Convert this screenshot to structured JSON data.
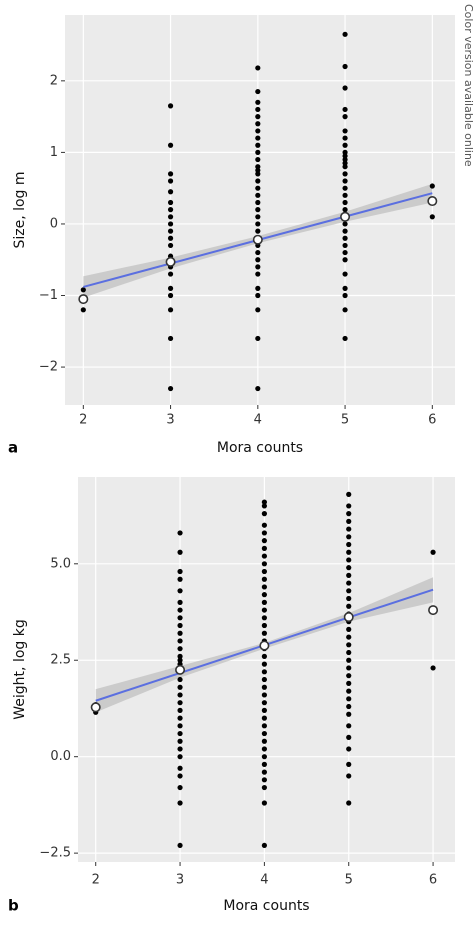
{
  "side_note": "Color version available online",
  "chart_data": [
    {
      "type": "scatter",
      "panel": "a",
      "xlabel": "Mora counts",
      "ylabel": "Size, log m",
      "xlim": [
        1.79,
        6.26
      ],
      "ylim": [
        -2.53,
        2.92
      ],
      "grid": true,
      "xticks": [
        2,
        3,
        4,
        5,
        6
      ],
      "yticks": [
        {
          "value": -2,
          "label": "−2"
        },
        {
          "value": -1,
          "label": "−1"
        },
        0,
        1,
        2
      ],
      "point_color": "#000000",
      "fit_color": "#5b6fe0",
      "band_color": "#bdbdbd",
      "columns": [
        {
          "x": 2,
          "y": [
            -0.92,
            -1.2
          ]
        },
        {
          "x": 3,
          "y": [
            1.65,
            1.1,
            0.7,
            0.6,
            0.45,
            0.3,
            0.2,
            0.1,
            0,
            -0.1,
            -0.2,
            -0.3,
            -0.45,
            -0.6,
            -0.7,
            -0.9,
            -1.0,
            -1.2,
            -1.6,
            -2.3
          ]
        },
        {
          "x": 4,
          "y": [
            2.18,
            1.85,
            1.7,
            1.6,
            1.5,
            1.4,
            1.3,
            1.2,
            1.1,
            1.0,
            0.9,
            0.8,
            0.75,
            0.7,
            0.6,
            0.5,
            0.4,
            0.3,
            0.2,
            0.1,
            0,
            -0.1,
            -0.3,
            -0.4,
            -0.5,
            -0.6,
            -0.7,
            -0.9,
            -1.0,
            -1.2,
            -1.6,
            -2.3
          ]
        },
        {
          "x": 5,
          "y": [
            2.65,
            2.2,
            1.9,
            1.6,
            1.5,
            1.3,
            1.2,
            1.1,
            1.0,
            0.95,
            0.9,
            0.85,
            0.8,
            0.7,
            0.6,
            0.5,
            0.4,
            0.3,
            0.2,
            0,
            -0.1,
            -0.2,
            -0.3,
            -0.4,
            -0.5,
            -0.7,
            -0.9,
            -1.0,
            -1.2,
            -1.6
          ]
        },
        {
          "x": 6,
          "y": [
            0.53,
            0.1
          ]
        }
      ],
      "means": {
        "x": [
          2,
          3,
          4,
          5,
          6
        ],
        "y": [
          -1.05,
          -0.53,
          -0.22,
          0.1,
          0.32
        ]
      },
      "fit": {
        "x": [
          2,
          6
        ],
        "y": [
          -0.88,
          0.43
        ]
      },
      "band": {
        "x": [
          2,
          3,
          4,
          5,
          6
        ],
        "lower": [
          -1.03,
          -0.62,
          -0.27,
          0.03,
          0.3
        ],
        "upper": [
          -0.73,
          -0.47,
          -0.17,
          0.17,
          0.56
        ]
      }
    },
    {
      "type": "scatter",
      "panel": "b",
      "xlabel": "Mora counts",
      "ylabel": "Weight, log kg",
      "xlim": [
        1.79,
        6.26
      ],
      "ylim": [
        -2.73,
        7.25
      ],
      "grid": true,
      "xticks": [
        2,
        3,
        4,
        5,
        6
      ],
      "yticks": [
        {
          "value": -2.5,
          "label": "−2.5"
        },
        {
          "value": 0,
          "label": "0.0"
        },
        2.5,
        {
          "value": 5,
          "label": "5.0"
        }
      ],
      "point_color": "#000000",
      "fit_color": "#5b6fe0",
      "band_color": "#bdbdbd",
      "columns": [
        {
          "x": 2,
          "y": [
            1.35,
            1.2,
            1.15
          ]
        },
        {
          "x": 3,
          "y": [
            5.8,
            5.3,
            4.8,
            4.6,
            4.3,
            4.0,
            3.8,
            3.6,
            3.4,
            3.2,
            3.0,
            2.8,
            2.6,
            2.5,
            2.4,
            2.2,
            2.0,
            1.8,
            1.6,
            1.4,
            1.2,
            1.0,
            0.8,
            0.6,
            0.4,
            0.2,
            0.0,
            -0.3,
            -0.5,
            -0.8,
            -1.2,
            -2.3
          ]
        },
        {
          "x": 4,
          "y": [
            6.6,
            6.5,
            6.3,
            6.0,
            5.8,
            5.6,
            5.4,
            5.2,
            5.0,
            4.8,
            4.6,
            4.4,
            4.2,
            4.0,
            3.8,
            3.6,
            3.4,
            3.2,
            3.0,
            2.8,
            2.6,
            2.4,
            2.2,
            2.0,
            1.8,
            1.6,
            1.4,
            1.2,
            1.0,
            0.8,
            0.6,
            0.4,
            0.2,
            0.0,
            -0.2,
            -0.4,
            -0.6,
            -0.8,
            -1.2,
            -2.3
          ]
        },
        {
          "x": 5,
          "y": [
            6.8,
            6.5,
            6.3,
            6.1,
            5.9,
            5.7,
            5.5,
            5.3,
            5.1,
            4.9,
            4.7,
            4.5,
            4.3,
            4.1,
            3.9,
            3.7,
            3.5,
            3.3,
            3.1,
            2.9,
            2.7,
            2.5,
            2.3,
            2.1,
            1.9,
            1.7,
            1.5,
            1.3,
            1.1,
            0.8,
            0.5,
            0.2,
            -0.2,
            -0.5,
            -1.2
          ]
        },
        {
          "x": 6,
          "y": [
            5.3,
            2.3
          ]
        }
      ],
      "means": {
        "x": [
          2,
          3,
          4,
          5,
          6
        ],
        "y": [
          1.28,
          2.25,
          2.88,
          3.62,
          3.8
        ]
      },
      "fit": {
        "x": [
          2,
          6
        ],
        "y": [
          1.45,
          4.33
        ]
      },
      "band": {
        "x": [
          2,
          3,
          4,
          5,
          6
        ],
        "lower": [
          1.15,
          2.05,
          2.8,
          3.5,
          4.0
        ],
        "upper": [
          1.75,
          2.35,
          2.95,
          3.72,
          4.65
        ]
      }
    }
  ]
}
